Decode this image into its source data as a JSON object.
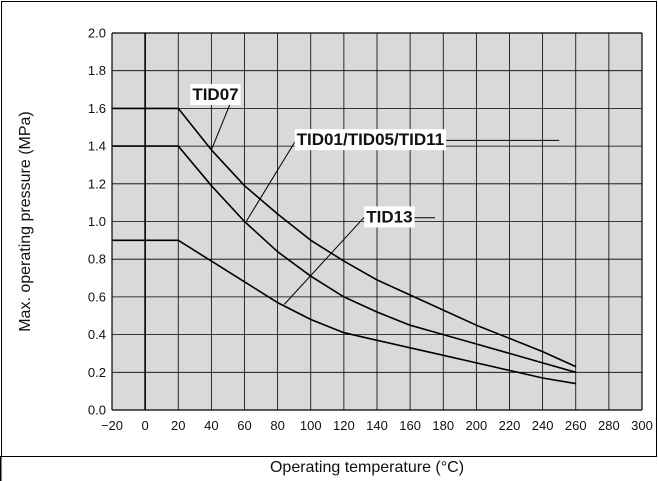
{
  "chart_data": {
    "type": "line",
    "title": "",
    "xlabel": "Operating temperature (°C)",
    "ylabel": "Max. operating pressure (MPa)",
    "xlim": [
      -20,
      300
    ],
    "ylim": [
      0,
      2.0
    ],
    "x_ticks": [
      "−20",
      "0",
      "20",
      "40",
      "60",
      "80",
      "100",
      "120",
      "140",
      "160",
      "180",
      "200",
      "220",
      "240",
      "260",
      "280",
      "300"
    ],
    "y_ticks": [
      "0.0",
      "0.2",
      "0.4",
      "0.6",
      "0.8",
      "1.0",
      "1.2",
      "1.4",
      "1.6",
      "1.8",
      "2.0"
    ],
    "grid": true,
    "background_color": "#d9d9d9",
    "line_color": "#000000",
    "series": [
      {
        "name": "TID07",
        "x": [
          -20,
          20,
          40,
          60,
          80,
          100,
          120,
          140,
          160,
          180,
          200,
          220,
          240,
          260
        ],
        "y": [
          1.6,
          1.6,
          1.38,
          1.19,
          1.04,
          0.9,
          0.79,
          0.69,
          0.61,
          0.53,
          0.45,
          0.38,
          0.31,
          0.23
        ]
      },
      {
        "name": "TID01/TID05/TID11",
        "x": [
          -20,
          20,
          40,
          60,
          80,
          100,
          120,
          140,
          160,
          180,
          200,
          220,
          240,
          260
        ],
        "y": [
          1.4,
          1.4,
          1.19,
          1.0,
          0.84,
          0.71,
          0.6,
          0.52,
          0.45,
          0.4,
          0.35,
          0.3,
          0.25,
          0.2
        ]
      },
      {
        "name": "TID13",
        "x": [
          -20,
          20,
          40,
          60,
          80,
          100,
          120,
          140,
          160,
          180,
          200,
          220,
          240,
          260
        ],
        "y": [
          0.9,
          0.9,
          0.79,
          0.68,
          0.57,
          0.48,
          0.41,
          0.37,
          0.33,
          0.29,
          0.25,
          0.21,
          0.17,
          0.14
        ]
      }
    ]
  }
}
